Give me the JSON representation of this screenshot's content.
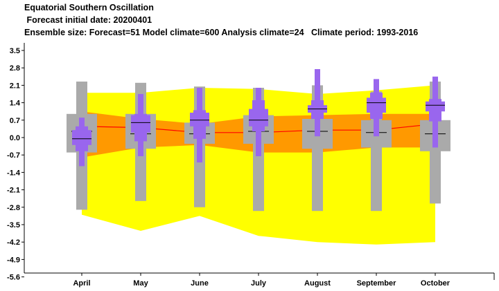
{
  "header": {
    "title": "Equatorial Southern Oscillation",
    "line2": " Forecast initial date: 20200401",
    "line3": "Ensemble size: Forecast=51 Model climate=600 Analysis climate=24   Climate period: 1993-2016"
  },
  "colors": {
    "climate_outer": "#ffff00",
    "climate_inner": "#ff9900",
    "climate_median": "#ff0000",
    "model_climate_box": "#aaaaaa",
    "forecast_box": "#9966ee",
    "median_line": "#000000",
    "axis": "#000000"
  },
  "chart_data": {
    "type": "box",
    "categories": [
      "April",
      "May",
      "June",
      "July",
      "August",
      "September",
      "October"
    ],
    "ylim": [
      -5.6,
      3.5
    ],
    "yticks": [
      "3.5",
      "2.8",
      "2.1",
      "1.4",
      "0.7",
      "0.0",
      "-0.7",
      "-1.4",
      "-2.1",
      "-2.8",
      "-3.5",
      "-4.2",
      "-4.9",
      "-5.6"
    ],
    "analysis_climate": {
      "min": [
        -3.1,
        -3.75,
        -3.15,
        -3.95,
        -4.2,
        -4.3,
        -4.2
      ],
      "p25": [
        -0.8,
        -0.4,
        -0.3,
        -0.6,
        -0.6,
        -0.4,
        -0.4
      ],
      "median": [
        0.45,
        0.4,
        0.2,
        0.2,
        0.3,
        0.3,
        0.55
      ],
      "p75": [
        1.05,
        0.75,
        0.55,
        0.85,
        0.9,
        0.95,
        0.95
      ],
      "max": [
        1.8,
        1.8,
        2.0,
        1.95,
        1.75,
        1.9,
        2.1
      ]
    },
    "model_climate": {
      "min": [
        -2.9,
        -2.55,
        -2.8,
        -2.95,
        -2.95,
        -2.95,
        -2.65
      ],
      "p10": [
        -0.6,
        -0.45,
        -0.25,
        -0.25,
        -0.45,
        -0.4,
        -0.55
      ],
      "p25": [
        -0.25,
        -0.25,
        -0.05,
        -0.05,
        -0.1,
        -0.1,
        -0.1
      ],
      "median": [
        0.25,
        0.15,
        0.15,
        0.25,
        0.25,
        0.2,
        0.15
      ],
      "p75": [
        0.5,
        0.4,
        0.45,
        0.45,
        0.55,
        0.55,
        0.45
      ],
      "p90": [
        0.95,
        0.95,
        0.6,
        0.9,
        0.75,
        0.7,
        0.7
      ],
      "max": [
        2.25,
        2.2,
        2.05,
        2.0,
        2.1,
        1.85,
        2.25
      ]
    },
    "forecast": {
      "min": [
        -1.15,
        -0.75,
        -1.0,
        -0.75,
        0.05,
        0.05,
        -0.4
      ],
      "p10": [
        -0.55,
        -0.15,
        -0.05,
        0.25,
        0.75,
        0.75,
        0.65
      ],
      "p25": [
        -0.3,
        0.2,
        0.45,
        0.45,
        1.0,
        1.0,
        1.05
      ],
      "median": [
        -0.05,
        0.6,
        0.7,
        0.7,
        1.15,
        1.4,
        1.3
      ],
      "p75": [
        0.3,
        0.9,
        1.0,
        1.15,
        1.3,
        1.6,
        1.45
      ],
      "p90": [
        0.45,
        0.95,
        1.1,
        1.5,
        1.5,
        1.8,
        1.55
      ],
      "max": [
        0.8,
        1.75,
        2.0,
        2.0,
        2.75,
        2.35,
        2.45
      ]
    }
  }
}
